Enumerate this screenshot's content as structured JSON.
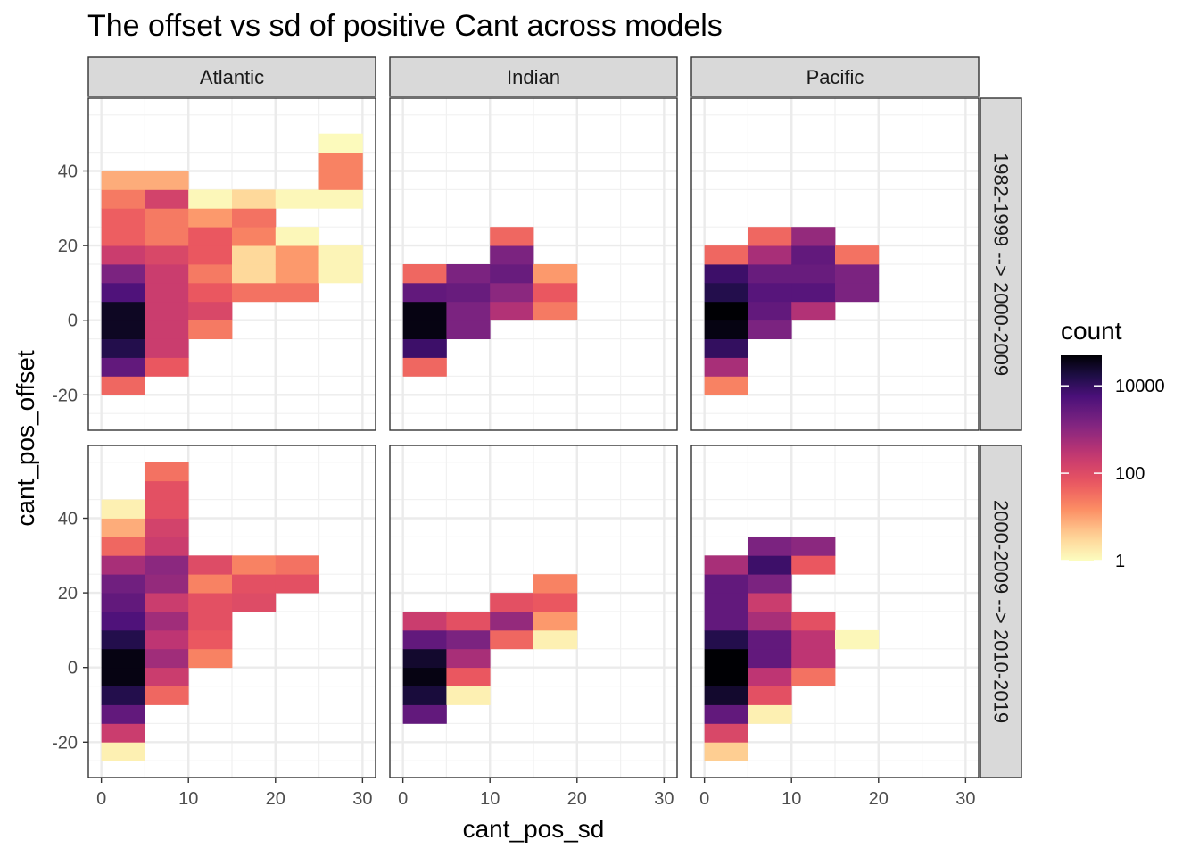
{
  "chart_data": {
    "type": "heatmap",
    "title": "The offset vs sd of positive Cant across models",
    "xlabel": "cant_pos_sd",
    "ylabel": "cant_pos_offset",
    "xlim": [
      -1.5,
      31.5
    ],
    "ylim": [
      -29.5,
      59.5
    ],
    "x_ticks": [
      0,
      10,
      20,
      30
    ],
    "y_ticks": [
      -20,
      0,
      20,
      40
    ],
    "bin_width_x": 5,
    "bin_height_y": 5,
    "columns": [
      "Atlantic",
      "Indian",
      "Pacific"
    ],
    "rows": [
      "1982-1999 --> 2000-2009",
      "2000-2009 --> 2010-2019"
    ],
    "legend": {
      "title": "count",
      "scale": "log10",
      "range": [
        1,
        50000
      ],
      "breaks": [
        1,
        100,
        10000
      ],
      "break_labels": [
        "1",
        "100",
        "10000"
      ],
      "palette": "magma (reversed)"
    },
    "panels": [
      {
        "column": "Atlantic",
        "row": "1982-1999 --> 2000-2009",
        "cells": [
          {
            "x": 2.5,
            "y": -17.5,
            "count": 40
          },
          {
            "x": 2.5,
            "y": -12.5,
            "count": 3000
          },
          {
            "x": 2.5,
            "y": -7.5,
            "count": 15000
          },
          {
            "x": 2.5,
            "y": -2.5,
            "count": 30000
          },
          {
            "x": 2.5,
            "y": 2.5,
            "count": 30000
          },
          {
            "x": 2.5,
            "y": 7.5,
            "count": 5000
          },
          {
            "x": 2.5,
            "y": 12.5,
            "count": 1500
          },
          {
            "x": 2.5,
            "y": 17.5,
            "count": 200
          },
          {
            "x": 2.5,
            "y": 22.5,
            "count": 50
          },
          {
            "x": 2.5,
            "y": 27.5,
            "count": 50
          },
          {
            "x": 2.5,
            "y": 32.5,
            "count": 25
          },
          {
            "x": 2.5,
            "y": 37.5,
            "count": 8
          },
          {
            "x": 7.5,
            "y": -12.5,
            "count": 60
          },
          {
            "x": 7.5,
            "y": -7.5,
            "count": 200
          },
          {
            "x": 7.5,
            "y": -2.5,
            "count": 200
          },
          {
            "x": 7.5,
            "y": 2.5,
            "count": 200
          },
          {
            "x": 7.5,
            "y": 7.5,
            "count": 200
          },
          {
            "x": 7.5,
            "y": 12.5,
            "count": 200
          },
          {
            "x": 7.5,
            "y": 17.5,
            "count": 120
          },
          {
            "x": 7.5,
            "y": 22.5,
            "count": 25
          },
          {
            "x": 7.5,
            "y": 27.5,
            "count": 25
          },
          {
            "x": 7.5,
            "y": 32.5,
            "count": 150
          },
          {
            "x": 7.5,
            "y": 37.5,
            "count": 8
          },
          {
            "x": 12.5,
            "y": 2.5,
            "count": 120
          },
          {
            "x": 12.5,
            "y": -2.5,
            "count": 25
          },
          {
            "x": 12.5,
            "y": 7.5,
            "count": 60
          },
          {
            "x": 12.5,
            "y": 12.5,
            "count": 25
          },
          {
            "x": 12.5,
            "y": 17.5,
            "count": 60
          },
          {
            "x": 12.5,
            "y": 22.5,
            "count": 60
          },
          {
            "x": 12.5,
            "y": 27.5,
            "count": 12
          },
          {
            "x": 12.5,
            "y": 32.5,
            "count": 1.2
          },
          {
            "x": 17.5,
            "y": 7.5,
            "count": 30
          },
          {
            "x": 17.5,
            "y": 12.5,
            "count": 3
          },
          {
            "x": 17.5,
            "y": 17.5,
            "count": 3
          },
          {
            "x": 17.5,
            "y": 22.5,
            "count": 20
          },
          {
            "x": 17.5,
            "y": 27.5,
            "count": 30
          },
          {
            "x": 17.5,
            "y": 32.5,
            "count": 3
          },
          {
            "x": 22.5,
            "y": 7.5,
            "count": 30
          },
          {
            "x": 22.5,
            "y": 12.5,
            "count": 12
          },
          {
            "x": 22.5,
            "y": 17.5,
            "count": 12
          },
          {
            "x": 22.5,
            "y": 22.5,
            "count": 1.2
          },
          {
            "x": 22.5,
            "y": 32.5,
            "count": 1.2
          },
          {
            "x": 27.5,
            "y": 12.5,
            "count": 1.3
          },
          {
            "x": 27.5,
            "y": 17.5,
            "count": 1.3
          },
          {
            "x": 27.5,
            "y": 32.5,
            "count": 1.2
          },
          {
            "x": 27.5,
            "y": 37.5,
            "count": 20
          },
          {
            "x": 27.5,
            "y": 42.5,
            "count": 20
          },
          {
            "x": 27.5,
            "y": 47.5,
            "count": 1.1
          }
        ]
      },
      {
        "column": "Indian",
        "row": "1982-1999 --> 2000-2009",
        "cells": [
          {
            "x": 2.5,
            "y": -12.5,
            "count": 40
          },
          {
            "x": 2.5,
            "y": -7.5,
            "count": 8000
          },
          {
            "x": 2.5,
            "y": -2.5,
            "count": 40000
          },
          {
            "x": 2.5,
            "y": 2.5,
            "count": 40000
          },
          {
            "x": 2.5,
            "y": 7.5,
            "count": 3000
          },
          {
            "x": 2.5,
            "y": 12.5,
            "count": 40
          },
          {
            "x": 7.5,
            "y": -2.5,
            "count": 1500
          },
          {
            "x": 7.5,
            "y": 2.5,
            "count": 1500
          },
          {
            "x": 7.5,
            "y": 7.5,
            "count": 2500
          },
          {
            "x": 7.5,
            "y": 12.5,
            "count": 1500
          },
          {
            "x": 12.5,
            "y": 2.5,
            "count": 400
          },
          {
            "x": 12.5,
            "y": 7.5,
            "count": 1000
          },
          {
            "x": 12.5,
            "y": 12.5,
            "count": 2500
          },
          {
            "x": 12.5,
            "y": 17.5,
            "count": 1500
          },
          {
            "x": 12.5,
            "y": 22.5,
            "count": 40
          },
          {
            "x": 17.5,
            "y": 2.5,
            "count": 25
          },
          {
            "x": 17.5,
            "y": 7.5,
            "count": 60
          },
          {
            "x": 17.5,
            "y": 12.5,
            "count": 12
          }
        ]
      },
      {
        "column": "Pacific",
        "row": "1982-1999 --> 2000-2009",
        "cells": [
          {
            "x": 2.5,
            "y": -17.5,
            "count": 20
          },
          {
            "x": 2.5,
            "y": -12.5,
            "count": 500
          },
          {
            "x": 2.5,
            "y": -7.5,
            "count": 10000
          },
          {
            "x": 2.5,
            "y": -2.5,
            "count": 40000
          },
          {
            "x": 2.5,
            "y": 2.5,
            "count": 60000
          },
          {
            "x": 2.5,
            "y": 7.5,
            "count": 15000
          },
          {
            "x": 2.5,
            "y": 12.5,
            "count": 8000
          },
          {
            "x": 2.5,
            "y": 17.5,
            "count": 40
          },
          {
            "x": 7.5,
            "y": -2.5,
            "count": 1500
          },
          {
            "x": 7.5,
            "y": 2.5,
            "count": 3000
          },
          {
            "x": 7.5,
            "y": 7.5,
            "count": 4000
          },
          {
            "x": 7.5,
            "y": 12.5,
            "count": 2500
          },
          {
            "x": 7.5,
            "y": 17.5,
            "count": 500
          },
          {
            "x": 7.5,
            "y": 22.5,
            "count": 40
          },
          {
            "x": 12.5,
            "y": 2.5,
            "count": 400
          },
          {
            "x": 12.5,
            "y": 7.5,
            "count": 4000
          },
          {
            "x": 12.5,
            "y": 12.5,
            "count": 2500
          },
          {
            "x": 12.5,
            "y": 17.5,
            "count": 3000
          },
          {
            "x": 12.5,
            "y": 22.5,
            "count": 800
          },
          {
            "x": 17.5,
            "y": 7.5,
            "count": 1500
          },
          {
            "x": 17.5,
            "y": 12.5,
            "count": 1500
          },
          {
            "x": 17.5,
            "y": 17.5,
            "count": 30
          }
        ]
      },
      {
        "column": "Atlantic",
        "row": "2000-2009 --> 2010-2019",
        "cells": [
          {
            "x": 2.5,
            "y": -22.5,
            "count": 1.5
          },
          {
            "x": 2.5,
            "y": -17.5,
            "count": 200
          },
          {
            "x": 2.5,
            "y": -12.5,
            "count": 3000
          },
          {
            "x": 2.5,
            "y": -7.5,
            "count": 15000
          },
          {
            "x": 2.5,
            "y": -2.5,
            "count": 40000
          },
          {
            "x": 2.5,
            "y": 2.5,
            "count": 40000
          },
          {
            "x": 2.5,
            "y": 7.5,
            "count": 15000
          },
          {
            "x": 2.5,
            "y": 12.5,
            "count": 5000
          },
          {
            "x": 2.5,
            "y": 17.5,
            "count": 3000
          },
          {
            "x": 2.5,
            "y": 22.5,
            "count": 2000
          },
          {
            "x": 2.5,
            "y": 27.5,
            "count": 500
          },
          {
            "x": 2.5,
            "y": 32.5,
            "count": 40
          },
          {
            "x": 2.5,
            "y": 37.5,
            "count": 8
          },
          {
            "x": 2.5,
            "y": 42.5,
            "count": 1.5
          },
          {
            "x": 7.5,
            "y": -7.5,
            "count": 40
          },
          {
            "x": 7.5,
            "y": -2.5,
            "count": 200
          },
          {
            "x": 7.5,
            "y": 2.5,
            "count": 600
          },
          {
            "x": 7.5,
            "y": 7.5,
            "count": 300
          },
          {
            "x": 7.5,
            "y": 12.5,
            "count": 600
          },
          {
            "x": 7.5,
            "y": 17.5,
            "count": 200
          },
          {
            "x": 7.5,
            "y": 22.5,
            "count": 800
          },
          {
            "x": 7.5,
            "y": 27.5,
            "count": 1000
          },
          {
            "x": 7.5,
            "y": 32.5,
            "count": 200
          },
          {
            "x": 7.5,
            "y": 37.5,
            "count": 150
          },
          {
            "x": 7.5,
            "y": 42.5,
            "count": 80
          },
          {
            "x": 7.5,
            "y": 47.5,
            "count": 80
          },
          {
            "x": 7.5,
            "y": 52.5,
            "count": 30
          },
          {
            "x": 12.5,
            "y": 2.5,
            "count": 20
          },
          {
            "x": 12.5,
            "y": 7.5,
            "count": 60
          },
          {
            "x": 12.5,
            "y": 12.5,
            "count": 80
          },
          {
            "x": 12.5,
            "y": 17.5,
            "count": 80
          },
          {
            "x": 12.5,
            "y": 22.5,
            "count": 20
          },
          {
            "x": 12.5,
            "y": 27.5,
            "count": 100
          },
          {
            "x": 17.5,
            "y": 17.5,
            "count": 100
          },
          {
            "x": 17.5,
            "y": 22.5,
            "count": 80
          },
          {
            "x": 17.5,
            "y": 27.5,
            "count": 20
          },
          {
            "x": 22.5,
            "y": 22.5,
            "count": 80
          },
          {
            "x": 22.5,
            "y": 27.5,
            "count": 30
          }
        ]
      },
      {
        "column": "Indian",
        "row": "2000-2009 --> 2010-2019",
        "cells": [
          {
            "x": 2.5,
            "y": -12.5,
            "count": 3000
          },
          {
            "x": 2.5,
            "y": -7.5,
            "count": 20000
          },
          {
            "x": 2.5,
            "y": -2.5,
            "count": 40000
          },
          {
            "x": 2.5,
            "y": 2.5,
            "count": 25000
          },
          {
            "x": 2.5,
            "y": 7.5,
            "count": 3000
          },
          {
            "x": 2.5,
            "y": 12.5,
            "count": 200
          },
          {
            "x": 7.5,
            "y": -7.5,
            "count": 1.5
          },
          {
            "x": 7.5,
            "y": -2.5,
            "count": 60
          },
          {
            "x": 7.5,
            "y": 2.5,
            "count": 500
          },
          {
            "x": 7.5,
            "y": 7.5,
            "count": 1500
          },
          {
            "x": 7.5,
            "y": 12.5,
            "count": 80
          },
          {
            "x": 12.5,
            "y": 7.5,
            "count": 40
          },
          {
            "x": 12.5,
            "y": 12.5,
            "count": 800
          },
          {
            "x": 12.5,
            "y": 17.5,
            "count": 80
          },
          {
            "x": 17.5,
            "y": 7.5,
            "count": 1.5
          },
          {
            "x": 17.5,
            "y": 12.5,
            "count": 12
          },
          {
            "x": 17.5,
            "y": 17.5,
            "count": 60
          },
          {
            "x": 17.5,
            "y": 22.5,
            "count": 20
          }
        ]
      },
      {
        "column": "Pacific",
        "row": "2000-2009 --> 2010-2019",
        "cells": [
          {
            "x": 2.5,
            "y": -22.5,
            "count": 4
          },
          {
            "x": 2.5,
            "y": -17.5,
            "count": 120
          },
          {
            "x": 2.5,
            "y": -12.5,
            "count": 3000
          },
          {
            "x": 2.5,
            "y": -7.5,
            "count": 25000
          },
          {
            "x": 2.5,
            "y": -2.5,
            "count": 60000
          },
          {
            "x": 2.5,
            "y": 2.5,
            "count": 50000
          },
          {
            "x": 2.5,
            "y": 7.5,
            "count": 15000
          },
          {
            "x": 2.5,
            "y": 12.5,
            "count": 3000
          },
          {
            "x": 2.5,
            "y": 17.5,
            "count": 3000
          },
          {
            "x": 2.5,
            "y": 22.5,
            "count": 3000
          },
          {
            "x": 2.5,
            "y": 27.5,
            "count": 500
          },
          {
            "x": 7.5,
            "y": -12.5,
            "count": 1.5
          },
          {
            "x": 7.5,
            "y": -7.5,
            "count": 80
          },
          {
            "x": 7.5,
            "y": -2.5,
            "count": 300
          },
          {
            "x": 7.5,
            "y": 2.5,
            "count": 3000
          },
          {
            "x": 7.5,
            "y": 7.5,
            "count": 3000
          },
          {
            "x": 7.5,
            "y": 12.5,
            "count": 500
          },
          {
            "x": 7.5,
            "y": 17.5,
            "count": 200
          },
          {
            "x": 7.5,
            "y": 22.5,
            "count": 1500
          },
          {
            "x": 7.5,
            "y": 27.5,
            "count": 8000
          },
          {
            "x": 7.5,
            "y": 32.5,
            "count": 1500
          },
          {
            "x": 12.5,
            "y": -2.5,
            "count": 30
          },
          {
            "x": 12.5,
            "y": 2.5,
            "count": 300
          },
          {
            "x": 12.5,
            "y": 7.5,
            "count": 300
          },
          {
            "x": 12.5,
            "y": 12.5,
            "count": 80
          },
          {
            "x": 12.5,
            "y": 27.5,
            "count": 60
          },
          {
            "x": 12.5,
            "y": 32.5,
            "count": 1000
          },
          {
            "x": 17.5,
            "y": 7.5,
            "count": 1.2
          }
        ]
      }
    ]
  }
}
